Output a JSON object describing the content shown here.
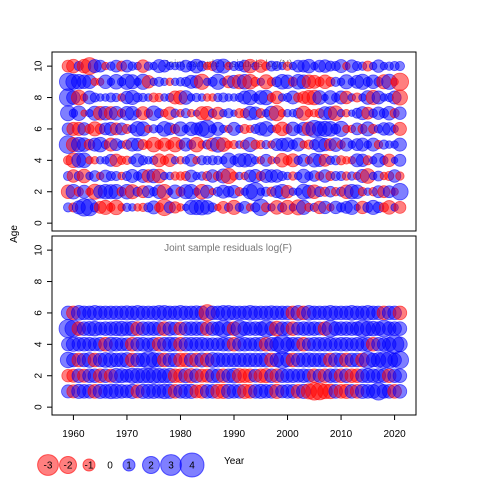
{
  "chart_data": {
    "type": "scatter",
    "colors": {
      "positive": "#0000ff",
      "negative": "#ff0000",
      "opacity": 0.5
    },
    "x_axis": {
      "label": "Year",
      "ticks": [
        1960,
        1970,
        1980,
        1990,
        2000,
        2010,
        2020
      ],
      "range": [
        1956,
        2024
      ]
    },
    "y_axis": {
      "label": "Age"
    },
    "legend": {
      "placement": "bottom-left",
      "entries": [
        {
          "label": "-3",
          "value": -3
        },
        {
          "label": "-2",
          "value": -2
        },
        {
          "label": "-1",
          "value": -1
        },
        {
          "label": "0",
          "value": 0
        },
        {
          "label": "1",
          "value": 1
        },
        {
          "label": "2",
          "value": 2
        },
        {
          "label": "3",
          "value": 3
        },
        {
          "label": "4",
          "value": 4
        }
      ]
    },
    "panels": [
      {
        "title": "Joint sample residuals log(N)",
        "y_ticks": [
          0,
          2,
          4,
          6,
          8,
          10
        ],
        "y_range": [
          -0.5,
          10.9
        ],
        "ages": [
          1,
          2,
          3,
          4,
          5,
          6,
          7,
          8,
          9,
          10
        ],
        "years": [
          1959,
          2021
        ],
        "residuals": [
          [
            0.6,
            -0.6,
            1.2,
            2.1,
            2.0,
            0.6,
            -1.0,
            -1.4,
            -0.5,
            -1.5,
            -0.4,
            0.5,
            0.4,
            -0.4,
            -0.5,
            0.6,
            1.2,
            -0.6,
            -1.9,
            0.9,
            -0.9,
            -0.4,
            0.3,
            1.4,
            1.5,
            1.6,
            1.3,
            0.6,
            -0.3,
            -1.0,
            0.5,
            -1.4,
            0.5,
            1.0,
            -0.4,
            0.6,
            1.9,
            -0.6,
            0.4,
            -1.3,
            0.6,
            -1.4,
            0.4,
            -1.6,
            1.4,
            -0.5,
            0.5,
            -1.1,
            1.1,
            -0.4,
            1.1,
            0.6,
            1.0,
            1.4,
            0.3,
            -1.1,
            0.7,
            1.4,
            0.8,
            -0.6,
            -1.3,
            0.4,
            -1.0
          ],
          [
            -1.3,
            1.5,
            -0.6,
            1.2,
            -0.4,
            -1.6,
            1.2,
            1.5,
            1.4,
            1.5,
            -0.6,
            1.5,
            -1.4,
            0.6,
            -1.0,
            1.0,
            0.5,
            1.3,
            -1.5,
            0.3,
            1.3,
            -0.6,
            1.4,
            1.5,
            0.4,
            -1.5,
            1.2,
            -0.3,
            0.6,
            1.2,
            0.8,
            1.1,
            -0.5,
            0.4,
            1.5,
            2.3,
            0.4,
            0.6,
            -0.6,
            1.0,
            1.5,
            -1.1,
            0.4,
            0.4,
            1.6,
            1.2,
            -1.3,
            0.7,
            -0.6,
            0.8,
            -0.5,
            0.6,
            -1.3,
            1.5,
            1.3,
            -0.5,
            0.4,
            -0.5,
            1.0,
            -1.0,
            1.0,
            -0.4,
            1.9
          ],
          [
            0.6,
            -1.1,
            0.6,
            -1.3,
            0.4,
            0.8,
            -0.4,
            1.0,
            0.6,
            0.6,
            -0.4,
            0.6,
            1.2,
            0.5,
            1.2,
            -1.1,
            1.3,
            -1.3,
            0.4,
            0.4,
            -0.5,
            -0.5,
            -0.6,
            1.0,
            0.4,
            0.5,
            -0.6,
            1.1,
            -0.6,
            1.4,
            -1.6,
            -0.5,
            0.4,
            -0.4,
            1.0,
            1.2,
            -0.6,
            1.2,
            1.1,
            1.1,
            0.6,
            0.4,
            -0.5,
            0.4,
            1.3,
            0.5,
            0.8,
            -0.5,
            1.1,
            -0.6,
            0.6,
            0.6,
            -0.5,
            0.5,
            -0.4,
            1.2,
            -1.5,
            0.4,
            0.7,
            -0.4,
            -0.6,
            1.1,
            -0.5
          ],
          [
            -0.6,
            -1.5,
            1.4,
            1.5,
            -0.4,
            -0.4,
            0.4,
            0.4,
            1.0,
            -1.1,
            -0.5,
            -0.5,
            0.4,
            1.2,
            0.6,
            0.4,
            0.5,
            -1.2,
            -0.5,
            -1.1,
            0.4,
            -0.4,
            0.4,
            1.0,
            -0.4,
            0.6,
            0.5,
            0.6,
            0.5,
            0.4,
            1.5,
            0.5,
            1.2,
            1.3,
            1.1,
            0.4,
            -0.4,
            1.0,
            -0.4,
            0.3,
            -1.3,
            -0.6,
            -1.2,
            0.5,
            1.0,
            -0.4,
            1.3,
            1.1,
            -1.0,
            0.5,
            0.6,
            -0.6,
            -0.4,
            -0.4,
            1.2,
            1.1,
            -0.6,
            0.4,
            1.3,
            0.5,
            -1.1,
            0.3,
            1.0
          ],
          [
            2.2,
            -1.4,
            1.5,
            1.3,
            -0.8,
            1.2,
            1.5,
            0.5,
            -1.2,
            1.0,
            0.4,
            -0.6,
            1.2,
            1.1,
            -0.7,
            -0.4,
            -1.5,
            -0.5,
            -1.2,
            -0.5,
            -1.5,
            -0.6,
            1.2,
            0.6,
            -1.5,
            -0.4,
            0.6,
            -1.2,
            1.6,
            -1.3,
            -0.4,
            -0.5,
            0.4,
            -0.6,
            1.4,
            -0.6,
            -0.5,
            0.5,
            -0.4,
            1.0,
            1.1,
            1.3,
            0.6,
            1.2,
            -0.4,
            -0.6,
            0.7,
            1.5,
            1.1,
            -1.0,
            1.3,
            -0.5,
            1.2,
            0.4,
            1.0,
            1.2,
            0.4,
            1.2,
            -0.5,
            0.6,
            0.4,
            0.4,
            1.2
          ],
          [
            1.0,
            -1.2,
            -1.2,
            1.1,
            -0.6,
            -1.4,
            -0.7,
            1.0,
            1.2,
            -1.0,
            1.0,
            -0.6,
            0.5,
            1.5,
            1.4,
            -0.4,
            0.5,
            0.4,
            1.5,
            1.0,
            -0.6,
            1.4,
            0.4,
            1.3,
            1.0,
            1.5,
            2.1,
            0.5,
            1.2,
            0.4,
            -0.4,
            1.2,
            0.4,
            -0.6,
            -0.4,
            0.6,
            1.1,
            1.5,
            0.4,
            -0.5,
            -1.3,
            -0.6,
            1.3,
            0.5,
            1.2,
            -1.3,
            2.0,
            1.5,
            1.6,
            1.5,
            0.7,
            1.6,
            -0.4,
            -0.4,
            1.0,
            -0.6,
            1.4,
            -0.6,
            0.5,
            1.1,
            1.1,
            0.4,
            -1.2
          ],
          [
            1.6,
            0.5,
            1.5,
            -0.3,
            0.4,
            1.4,
            -1.3,
            1.3,
            -1.2,
            1.3,
            -0.5,
            1.3,
            1.3,
            0.4,
            -1.2,
            -0.5,
            1.5,
            0.6,
            -0.4,
            -1.1,
            0.5,
            -0.4,
            0.6,
            -0.4,
            0.3,
            -1.2,
            -1.3,
            0.5,
            -1.0,
            0.4,
            0.6,
            0.3,
            -0.6,
            -0.6,
            1.3,
            1.1,
            -0.6,
            0.4,
            1.4,
            -1.6,
            -0.4,
            0.4,
            0.4,
            0.7,
            -1.4,
            -0.4,
            -0.4,
            -0.6,
            1.2,
            1.2,
            -1.5,
            0.4,
            -0.4,
            0.3,
            0.7,
            1.2,
            -1.0,
            0.5,
            1.1,
            0.6,
            1.3,
            -0.6,
            1.1
          ],
          [
            2.1,
            1.3,
            -1.5,
            -0.4,
            1.2,
            0.6,
            0.4,
            0.4,
            0.6,
            0.5,
            -0.4,
            1.1,
            1.4,
            0.6,
            0.5,
            0.4,
            -0.6,
            -0.5,
            0.4,
            0.5,
            -1.2,
            -1.3,
            1.3,
            0.4,
            0.5,
            0.4,
            -0.4,
            -0.4,
            0.5,
            0.6,
            0.4,
            0.4,
            0.5,
            1.2,
            1.5,
            0.4,
            1.3,
            1.5,
            -0.5,
            -1.1,
            0.4,
            0.5,
            1.2,
            -0.6,
            -1.0,
            -1.4,
            -1.5,
            1.3,
            0.3,
            1.3,
            0.5,
            1.2,
            -1.1,
            0.4,
            -0.6,
            0.4,
            1.3,
            -1.4,
            1.2,
            0.4,
            0.5,
            1.2,
            -1.6
          ],
          [
            2.1,
            1.6,
            1.5,
            1.3,
            1.3,
            -0.4,
            -0.4,
            1.3,
            0.4,
            1.5,
            0.5,
            1.6,
            1.4,
            0.4,
            1.6,
            -1.1,
            0.4,
            0.6,
            0.4,
            -0.4,
            0.4,
            0.5,
            0.6,
            1.2,
            1.1,
            -1.6,
            0.4,
            0.6,
            1.6,
            0.4,
            -1.0,
            1.2,
            -1.4,
            1.5,
            -1.5,
            -0.6,
            0.4,
            -1.4,
            -0.5,
            0.7,
            1.5,
            1.3,
            -0.6,
            1.5,
            1.3,
            -1.3,
            -1.2,
            -0.6,
            -1.3,
            -0.6,
            0.6,
            0.4,
            1.4,
            0.4,
            1.2,
            1.6,
            0.6,
            1.3,
            0.6,
            -1.4,
            1.6,
            -0.4,
            -2.1
          ],
          [
            -1.0,
            -1.3,
            0.6,
            -1.3,
            -2.0,
            1.2,
            1.0,
            -0.4,
            0.5,
            1.0,
            -0.7,
            1.0,
            0.5,
            0.4,
            -1.1,
            0.5,
            0.4,
            1.2,
            1.0,
            0.4,
            0.4,
            0.5,
            1.0,
            0.6,
            1.3,
            0.7,
            -0.4,
            -0.6,
            1.2,
            1.4,
            -0.4,
            0.6,
            0.6,
            1.0,
            -1.3,
            0.4,
            -1.1,
            -0.5,
            0.7,
            0.6,
            0.4,
            -0.5,
            0.4,
            1.0,
            1.0,
            1.3,
            0.4,
            1.0,
            1.1,
            0.7,
            0.6,
            1.2,
            -0.4,
            1.1,
            0.6,
            0.5,
            -0.7,
            0.4,
            1.1,
            0.4,
            0.5,
            0.6,
            0.6
          ]
        ]
      },
      {
        "title": "Joint sample residuals log(F)",
        "y_ticks": [
          0,
          2,
          4,
          6,
          8,
          10
        ],
        "y_range": [
          -0.5,
          10.9
        ],
        "ages": [
          1,
          2,
          3,
          4,
          5,
          6
        ],
        "years": [
          1959,
          2021
        ],
        "residuals": [
          [
            1.2,
            -1.2,
            1.4,
            1.3,
            1.3,
            -1.3,
            1.4,
            1.3,
            1.5,
            1.4,
            1.3,
            1.2,
            1.4,
            -1.2,
            1.4,
            1.4,
            1.4,
            1.3,
            1.5,
            1.4,
            -1.3,
            1.3,
            1.4,
            1.4,
            -1.2,
            -1.3,
            1.3,
            1.3,
            -1.4,
            -1.4,
            1.4,
            1.3,
            1.3,
            -1.4,
            -1.3,
            1.3,
            1.4,
            1.3,
            1.3,
            -1.4,
            1.2,
            1.3,
            1.3,
            -1.3,
            1.4,
            -1.6,
            -2.1,
            -2.0,
            -1.5,
            -1.5,
            1.3,
            -1.3,
            -1.4,
            1.3,
            -1.3,
            1.4,
            1.3,
            1.3,
            2.1,
            1.3,
            1.3,
            -1.3,
            1.3
          ],
          [
            -1.1,
            -1.2,
            1.3,
            -1.2,
            1.3,
            1.3,
            -1.3,
            1.3,
            -1.2,
            1.5,
            1.4,
            1.2,
            1.6,
            1.5,
            1.5,
            1.4,
            1.6,
            1.5,
            1.4,
            1.5,
            -1.3,
            -1.3,
            1.4,
            -1.4,
            1.3,
            -1.2,
            -1.2,
            1.4,
            1.3,
            -1.3,
            1.3,
            1.5,
            -1.4,
            -1.3,
            -1.3,
            1.2,
            -1.3,
            -1.4,
            1.3,
            -1.3,
            1.3,
            1.3,
            1.3,
            1.2,
            1.3,
            1.2,
            -1.3,
            1.2,
            -1.3,
            1.3,
            1.3,
            -1.3,
            1.3,
            -1.3,
            -1.3,
            1.3,
            1.4,
            1.3,
            1.4,
            1.3,
            -1.3,
            1.3,
            1.3
          ],
          [
            1.7,
            1.3,
            -1.3,
            1.3,
            1.5,
            -1.3,
            1.3,
            1.5,
            1.5,
            1.3,
            1.4,
            1.5,
            -1.3,
            1.3,
            1.3,
            2.1,
            1.5,
            1.4,
            -1.3,
            1.3,
            1.3,
            -1.3,
            -1.3,
            1.3,
            -1.3,
            1.4,
            -1.3,
            1.5,
            1.4,
            1.3,
            1.3,
            1.3,
            1.3,
            1.3,
            1.3,
            1.3,
            1.3,
            1.4,
            -1.3,
            1.3,
            2.0,
            1.3,
            -1.3,
            1.3,
            1.4,
            1.4,
            1.3,
            1.3,
            1.3,
            -1.3,
            1.4,
            1.3,
            -1.3,
            1.3,
            1.3,
            -1.3,
            2.0,
            1.3,
            1.5,
            2.0,
            2.0,
            1.3,
            2.1
          ],
          [
            1.2,
            1.4,
            1.3,
            1.3,
            1.3,
            1.2,
            1.3,
            -1.3,
            1.4,
            1.3,
            1.2,
            1.2,
            -1.3,
            1.3,
            1.3,
            1.2,
            1.3,
            -1.3,
            1.3,
            1.4,
            1.3,
            -1.3,
            1.3,
            1.3,
            1.3,
            1.3,
            1.2,
            1.2,
            1.2,
            1.3,
            1.3,
            -1.3,
            1.3,
            1.3,
            1.2,
            1.3,
            1.3,
            -1.3,
            1.3,
            1.4,
            2.4,
            1.3,
            1.3,
            1.3,
            -1.3,
            1.2,
            1.3,
            1.3,
            1.3,
            1.3,
            1.2,
            1.3,
            1.3,
            1.2,
            1.3,
            1.3,
            1.3,
            -1.3,
            1.3,
            1.2,
            1.3,
            2.4,
            1.5
          ],
          [
            2.3,
            2.0,
            -1.3,
            1.3,
            1.4,
            1.5,
            1.2,
            1.3,
            1.3,
            1.4,
            1.5,
            1.3,
            1.5,
            -1.3,
            1.3,
            1.3,
            1.3,
            1.3,
            -1.3,
            1.3,
            1.2,
            -1.2,
            1.3,
            1.3,
            1.3,
            1.3,
            -1.3,
            1.3,
            1.3,
            2.0,
            1.3,
            -1.3,
            2.0,
            1.3,
            1.3,
            1.3,
            1.3,
            2.0,
            1.3,
            -1.5,
            1.3,
            1.3,
            -1.3,
            1.2,
            1.3,
            1.3,
            1.3,
            1.2,
            -1.3,
            2.0,
            1.3,
            1.3,
            1.3,
            1.3,
            1.3,
            2.0,
            1.5,
            1.5,
            1.3,
            2.0,
            1.3,
            1.3,
            1.3
          ],
          [
            1.3,
            -1.3,
            1.5,
            1.3,
            1.3,
            1.5,
            1.3,
            1.3,
            1.3,
            1.3,
            1.3,
            1.4,
            1.3,
            1.5,
            1.3,
            1.3,
            1.3,
            1.5,
            1.5,
            1.3,
            1.3,
            1.5,
            1.3,
            1.3,
            1.4,
            1.3,
            -1.9,
            1.3,
            1.3,
            1.5,
            1.5,
            1.3,
            1.3,
            1.3,
            1.5,
            1.3,
            1.3,
            1.3,
            1.4,
            1.3,
            1.3,
            1.3,
            -1.3,
            1.5,
            -1.3,
            1.5,
            1.3,
            1.3,
            1.3,
            1.5,
            1.3,
            1.3,
            1.3,
            1.5,
            1.3,
            1.3,
            1.5,
            1.3,
            1.3,
            -1.3,
            1.3,
            1.3,
            -1.3
          ]
        ]
      }
    ]
  }
}
